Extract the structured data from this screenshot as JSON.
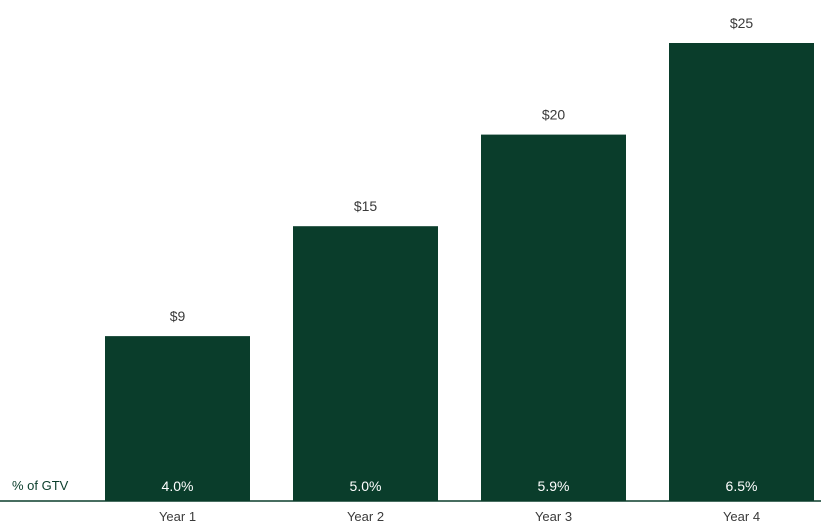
{
  "chart_data": {
    "type": "bar",
    "categories": [
      "Year 1",
      "Year 2",
      "Year 3",
      "Year 4"
    ],
    "values": [
      9,
      15,
      20,
      25
    ],
    "value_labels": [
      "$9",
      "$15",
      "$20",
      "$25"
    ],
    "secondary_row": {
      "label": "% of GTV",
      "values": [
        "4.0%",
        "5.0%",
        "5.9%",
        "6.5%"
      ]
    },
    "title": "",
    "xlabel": "",
    "ylabel": "",
    "ylim": [
      0,
      25
    ],
    "grid": false,
    "legend": "none",
    "colors": {
      "bar": "#0a3d2b",
      "axis": "#0a3d2b",
      "row_label": "#0a3d2b",
      "text": "#3a3a3a"
    }
  }
}
